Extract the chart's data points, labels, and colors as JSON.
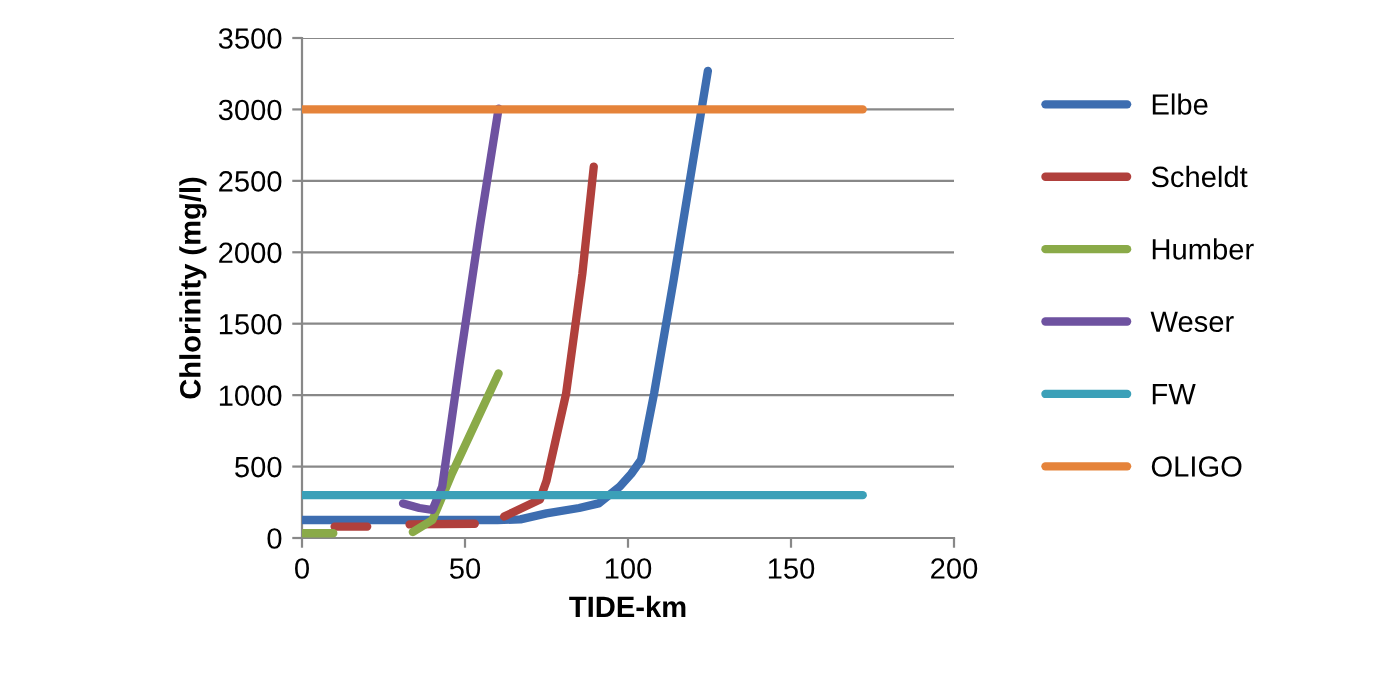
{
  "chart_data": {
    "type": "line",
    "xlabel": "TIDE-km",
    "ylabel": "Chlorinity (mg/l)",
    "xlim": [
      0,
      200
    ],
    "xticks": [
      0,
      50,
      100,
      150,
      200
    ],
    "ylim": [
      0,
      3500
    ],
    "yticks": [
      0,
      500,
      1000,
      1500,
      2000,
      2500,
      3000,
      3500
    ],
    "grid": "y",
    "legend": "right",
    "marker": "none",
    "line_style": "solid",
    "series": [
      {
        "name": "Elbe",
        "color": "#3d6db0",
        "x": [
          0,
          20,
          40,
          60,
          67,
          75,
          85,
          91,
          97.5,
          101,
          104,
          108,
          114,
          120,
          124.5
        ],
        "values": [
          126,
          126,
          126,
          126,
          130,
          172,
          210,
          242,
          360,
          450,
          546,
          1012,
          1806,
          2646,
          3270
        ]
      },
      {
        "name": "Scheldt",
        "color": "#b0403c",
        "x": [
          10,
          20,
          null,
          33,
          53,
          null,
          62,
          73,
          75,
          81,
          86,
          89.5
        ],
        "values": [
          80,
          80,
          null,
          95,
          100,
          null,
          150,
          270,
          400,
          1010,
          1850,
          2600
        ]
      },
      {
        "name": "Humber",
        "color": "#8aaa48",
        "x": [
          0.4,
          9.6,
          null,
          34,
          40,
          46,
          60.3
        ],
        "values": [
          33,
          33,
          null,
          42,
          126,
          452,
          1152
        ]
      },
      {
        "name": "Weser",
        "color": "#6e52a0",
        "x": [
          31,
          36,
          40,
          43,
          48.5,
          54.6,
          60.3
        ],
        "values": [
          242,
          210,
          196,
          360,
          1246,
          2186,
          3006
        ]
      },
      {
        "name": "FW",
        "color": "#3ba0b8",
        "x": [
          0,
          172
        ],
        "values": [
          300,
          300
        ]
      },
      {
        "name": "OLIGO",
        "color": "#e5833a",
        "x": [
          0,
          172
        ],
        "values": [
          3000,
          3000
        ]
      }
    ]
  }
}
